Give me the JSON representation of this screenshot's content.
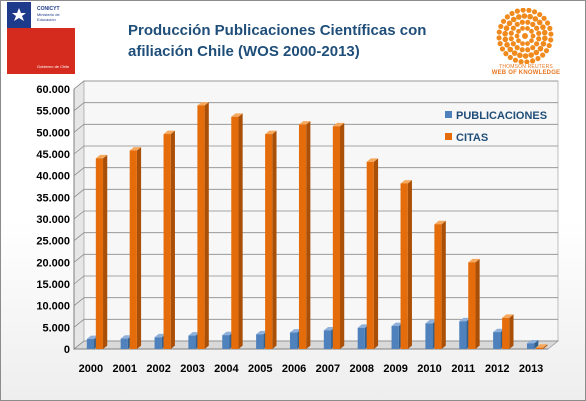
{
  "branding": {
    "logo_lines": [
      "CONICYT",
      "Ministerio de",
      "Educación",
      "Gobierno de Chile"
    ],
    "thomson_reuters": "THOMSON REUTERS",
    "web_of_knowledge": "WEB OF KNOWLEDGE",
    "colors": {
      "chile_blue": "#1e3a8a",
      "chile_red": "#d52b1e",
      "tr_orange": "#f08a1c"
    }
  },
  "chart_data": {
    "type": "bar",
    "title": "Producción Publicaciones Científicas con afiliación Chile (WOS 2000-2013)",
    "title_lines": [
      "Producción Publicaciones Científicas con",
      "afiliación Chile (WOS 2000-2013)"
    ],
    "categories": [
      "2000",
      "2001",
      "2002",
      "2003",
      "2004",
      "2005",
      "2006",
      "2007",
      "2008",
      "2009",
      "2010",
      "2011",
      "2012",
      "2013"
    ],
    "series": [
      {
        "name": "PUBLICACIONES",
        "color": "#4f81bd",
        "values": [
          2300,
          2400,
          2700,
          3100,
          3200,
          3400,
          3800,
          4300,
          4900,
          5300,
          5900,
          6400,
          3900,
          1300
        ]
      },
      {
        "name": "CITAS",
        "color": "#e46c0a",
        "values": [
          44000,
          45800,
          49600,
          56200,
          53600,
          49600,
          51800,
          51400,
          43200,
          38200,
          28800,
          20000,
          7200,
          300
        ]
      }
    ],
    "ylim": [
      0,
      60000
    ],
    "yticks": [
      "0",
      "5.000",
      "10.000",
      "15.000",
      "20.000",
      "25.000",
      "30.000",
      "35.000",
      "40.000",
      "45.000",
      "50.000",
      "55.000",
      "60.000"
    ],
    "ytick_values": [
      0,
      5000,
      10000,
      15000,
      20000,
      25000,
      30000,
      35000,
      40000,
      45000,
      50000,
      55000,
      60000
    ],
    "grid": true,
    "legend_position": "right"
  }
}
